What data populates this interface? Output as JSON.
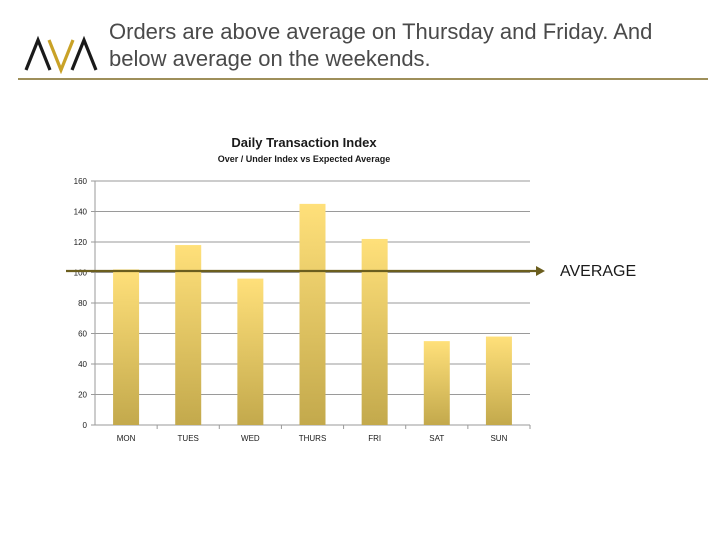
{
  "header": {
    "logo_text": "AVA",
    "headline_line1": "Orders are above average on Thursday and Friday. And",
    "headline_line2": "below average on the weekends."
  },
  "colors": {
    "accent": "#9e8f5a",
    "bar_top": "#ffe07a",
    "bar_bottom": "#c3a94c",
    "average_line": "#6b5e1e",
    "grid": "#9a9a9a",
    "text": "#4a4a4a"
  },
  "chart_data": {
    "type": "bar",
    "title": "Daily Transaction Index",
    "subtitle": "Over / Under Index vs Expected Average",
    "categories": [
      "MON",
      "TUES",
      "WED",
      "THURS",
      "FRI",
      "SAT",
      "SUN"
    ],
    "values": [
      102,
      118,
      96,
      145,
      122,
      55,
      58
    ],
    "ylim": [
      0,
      160
    ],
    "yticks": [
      0,
      20,
      40,
      60,
      80,
      100,
      120,
      140,
      160
    ],
    "grid": true,
    "average": {
      "value": 101,
      "label": "AVERAGE"
    }
  }
}
